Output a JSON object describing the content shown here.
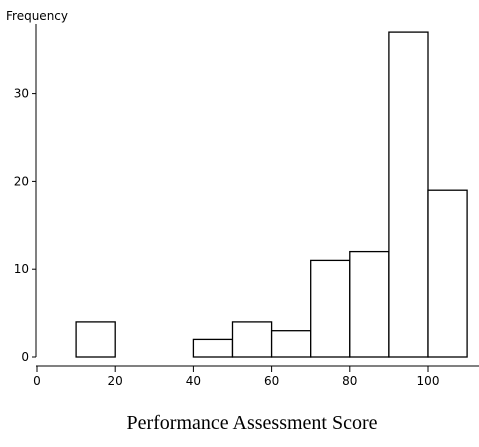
{
  "chart_data": {
    "type": "bar",
    "subtype": "histogram",
    "xlabel": "Performance Assessment Score",
    "ylabel": "Frequency",
    "xlim": [
      0,
      110
    ],
    "ylim": [
      0,
      38
    ],
    "x_ticks": [
      0,
      20,
      40,
      60,
      80,
      100
    ],
    "y_ticks": [
      0,
      10,
      20,
      30
    ],
    "grid": false,
    "bin_width": 10,
    "bins": [
      {
        "start": 10,
        "end": 20,
        "count": 4
      },
      {
        "start": 40,
        "end": 50,
        "count": 2
      },
      {
        "start": 50,
        "end": 60,
        "count": 4
      },
      {
        "start": 60,
        "end": 70,
        "count": 3
      },
      {
        "start": 70,
        "end": 80,
        "count": 11
      },
      {
        "start": 80,
        "end": 90,
        "count": 12
      },
      {
        "start": 90,
        "end": 100,
        "count": 37
      },
      {
        "start": 100,
        "end": 110,
        "count": 19
      }
    ],
    "bar_fill": "#ffffff",
    "bar_stroke": "#000000"
  }
}
